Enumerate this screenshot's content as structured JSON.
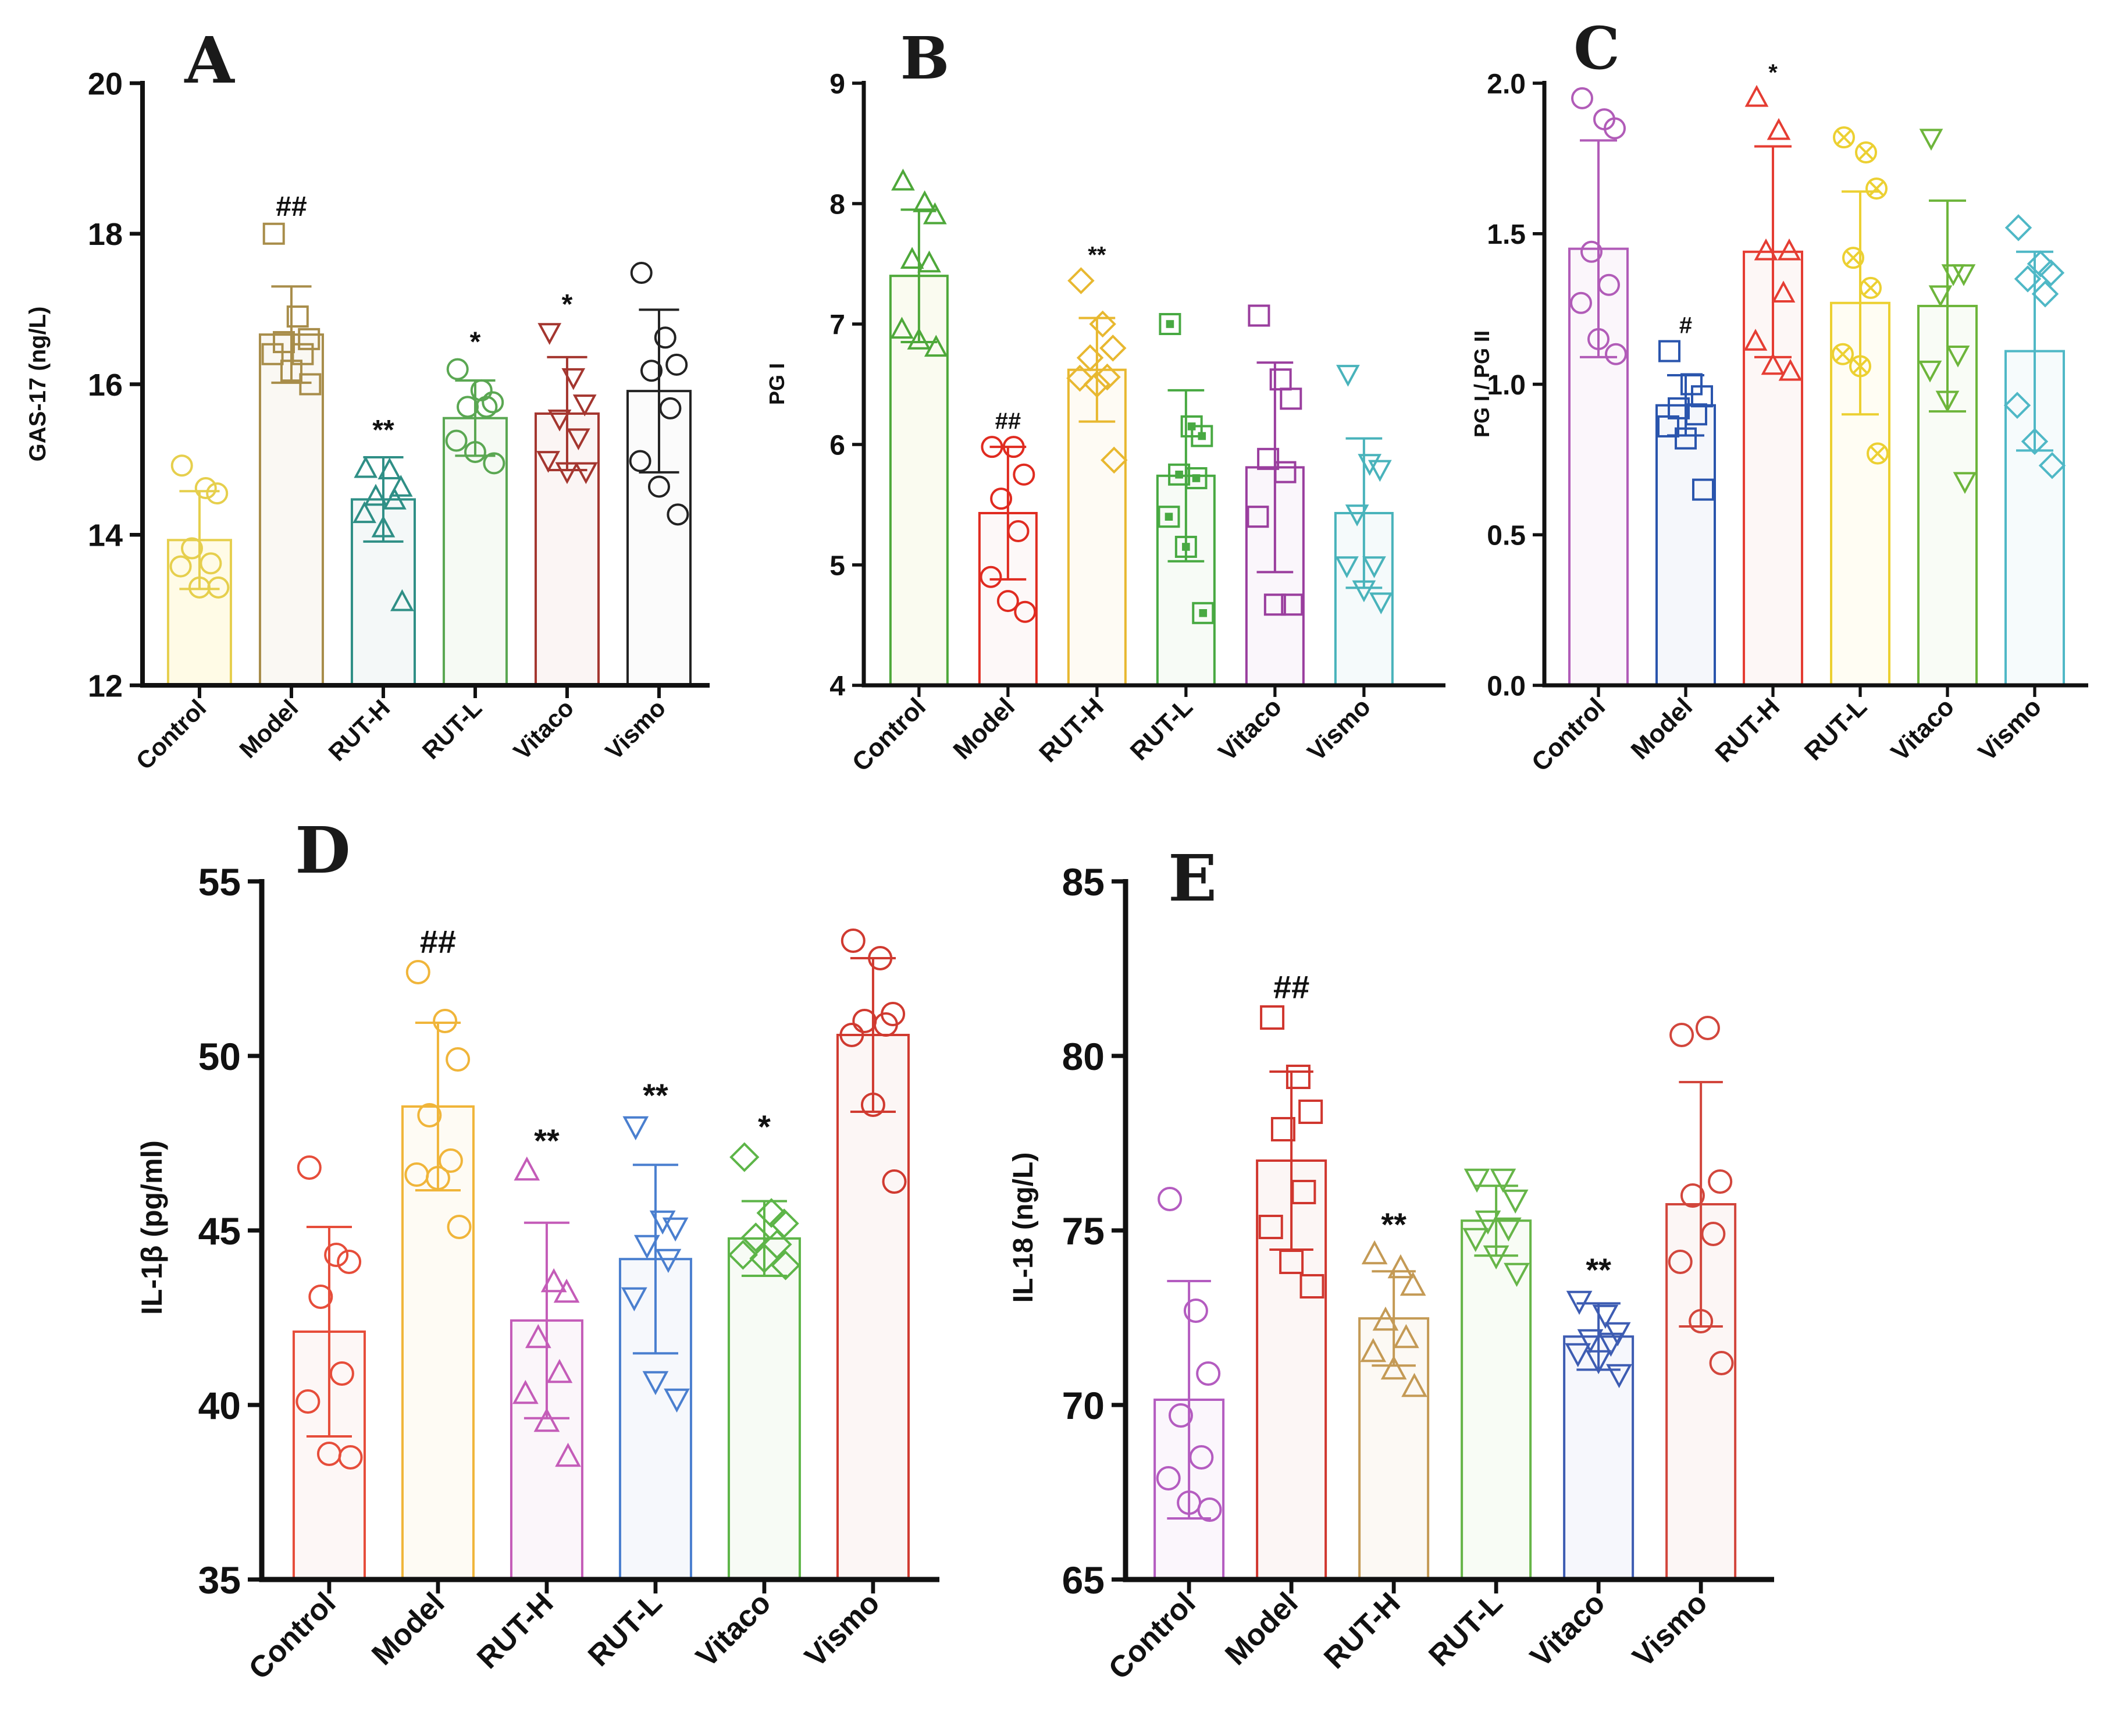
{
  "chart_data": [
    {
      "panel": "A",
      "type": "bar",
      "ylabel": "GAS-17  (ng/L)",
      "ylim": [
        12,
        20
      ],
      "yticks": [
        12,
        14,
        16,
        18,
        20
      ],
      "categories": [
        "Control",
        "Model",
        "RUT-H",
        "RUT-L",
        "Vitaco",
        "Vismo"
      ],
      "means": [
        13.93,
        16.66,
        14.47,
        15.55,
        15.61,
        15.91
      ],
      "sd": [
        0.65,
        0.64,
        0.56,
        0.5,
        0.75,
        1.08
      ],
      "points": [
        [
          14.92,
          14.62,
          14.55,
          13.82,
          13.62,
          13.58,
          13.3,
          13.3
        ],
        [
          18.0,
          16.9,
          16.6,
          16.56,
          16.4,
          16.4,
          16.18,
          16.0
        ],
        [
          14.87,
          14.85,
          14.62,
          14.5,
          14.45,
          14.27,
          14.08,
          13.1
        ],
        [
          16.2,
          15.92,
          15.76,
          15.7,
          15.7,
          15.25,
          15.1,
          14.95
        ],
        [
          16.7,
          16.1,
          15.75,
          15.55,
          15.3,
          15.0,
          14.85,
          14.85
        ],
        [
          17.48,
          16.62,
          16.26,
          16.18,
          15.68,
          14.98,
          14.64,
          14.27
        ]
      ],
      "annotations": [
        "",
        "##",
        "**",
        "*",
        "*",
        ""
      ],
      "colors": [
        "#e6cf4d",
        "#a88d4a",
        "#2f8f86",
        "#5aa752",
        "#a4362f",
        "#222222"
      ],
      "fills": [
        "#fffbe6",
        "#faf8f3",
        "#f4f8f8",
        "#f6faf4",
        "#fbf5f4",
        "#fbfbfb"
      ],
      "marker": [
        "circle",
        "square",
        "triangle",
        "circle",
        "triangle-down",
        "circle"
      ]
    },
    {
      "panel": "B",
      "type": "bar",
      "ylabel": "PG I",
      "ylim": [
        4,
        9
      ],
      "yticks": [
        4,
        5,
        6,
        7,
        8,
        9
      ],
      "categories": [
        "Control",
        "Model",
        "RUT-H",
        "RUT-L",
        "Vitaco",
        "Vismo"
      ],
      "means": [
        7.4,
        5.43,
        6.62,
        5.74,
        5.81,
        5.43
      ],
      "sd": [
        0.55,
        0.55,
        0.43,
        0.71,
        0.87,
        0.62
      ],
      "points": [
        [
          8.18,
          8.0,
          7.9,
          7.53,
          7.5,
          6.95,
          6.86,
          6.8
        ],
        [
          5.98,
          5.98,
          5.75,
          5.55,
          5.28,
          4.9,
          4.7,
          4.61
        ],
        [
          7.36,
          7.0,
          6.8,
          6.72,
          6.56,
          6.55,
          6.5,
          5.87
        ],
        [
          7.0,
          6.15,
          6.07,
          5.75,
          5.72,
          5.4,
          5.15,
          4.6
        ],
        [
          7.07,
          6.54,
          6.38,
          5.88,
          5.77,
          5.4,
          4.67,
          4.67
        ],
        [
          6.59,
          5.85,
          5.8,
          5.43,
          5.0,
          5.0,
          4.8,
          4.7
        ]
      ],
      "annotations": [
        "",
        "##",
        "**",
        "",
        "",
        ""
      ],
      "colors": [
        "#4ea83a",
        "#e02b20",
        "#e8b830",
        "#48a942",
        "#9a3e9e",
        "#49b3bb"
      ],
      "fills": [
        "#fafbf0",
        "#fdf8f8",
        "#fefbf4",
        "#f7fbf6",
        "#faf6fb",
        "#f5fafb"
      ],
      "marker": [
        "triangle",
        "circle",
        "diamond",
        "square-dot",
        "square",
        "triangle-down"
      ]
    },
    {
      "panel": "C",
      "type": "bar",
      "ylabel": "PG I / PG II",
      "ylim": [
        0,
        2
      ],
      "yticks": [
        "0.0",
        "0.5",
        "1.0",
        "1.5",
        "2.0"
      ],
      "categories": [
        "Control",
        "Model",
        "RUT-H",
        "RUT-L",
        "Vitaco",
        "Vismo"
      ],
      "means": [
        1.45,
        0.93,
        1.44,
        1.27,
        1.26,
        1.11
      ],
      "sd": [
        0.36,
        0.1,
        0.35,
        0.37,
        0.35,
        0.33
      ],
      "points": [
        [
          1.95,
          1.88,
          1.85,
          1.44,
          1.33,
          1.27,
          1.15,
          1.1
        ],
        [
          1.11,
          1.0,
          0.96,
          0.92,
          0.9,
          0.86,
          0.82,
          0.65
        ],
        [
          1.95,
          1.84,
          1.44,
          1.44,
          1.3,
          1.14,
          1.06,
          1.04
        ],
        [
          1.82,
          1.77,
          1.65,
          1.42,
          1.32,
          1.1,
          1.06,
          0.77
        ],
        [
          1.82,
          1.37,
          1.37,
          1.3,
          1.1,
          1.05,
          0.95,
          0.68
        ],
        [
          1.52,
          1.4,
          1.37,
          1.35,
          1.3,
          0.93,
          0.81,
          0.73
        ]
      ],
      "annotations": [
        "",
        "#",
        "*",
        "",
        "",
        ""
      ],
      "colors": [
        "#b15cb8",
        "#2a55ad",
        "#e53d33",
        "#ecd032",
        "#6db53b",
        "#4fb8c6"
      ],
      "fills": [
        "#fbf6fb",
        "#f5f7fb",
        "#fdf7f6",
        "#fffdf3",
        "#f9fcf6",
        "#f6fbfc"
      ],
      "marker": [
        "circle",
        "square",
        "triangle",
        "circle-x",
        "triangle-down",
        "diamond"
      ]
    },
    {
      "panel": "D",
      "type": "bar",
      "ylabel": "IL-1β  (pg/ml)",
      "ylim": [
        35,
        55
      ],
      "yticks": [
        35,
        40,
        45,
        50,
        55
      ],
      "categories": [
        "Control",
        "Model",
        "RUT-H",
        "RUT-L",
        "Vitaco",
        "Vismo"
      ],
      "means": [
        42.1,
        48.55,
        42.42,
        44.18,
        44.77,
        50.6
      ],
      "sd": [
        3.0,
        2.4,
        2.8,
        2.7,
        1.07,
        2.2
      ],
      "points": [
        [
          46.8,
          44.3,
          44.1,
          43.1,
          40.9,
          40.1,
          38.6,
          38.5
        ],
        [
          52.4,
          51.0,
          49.9,
          48.3,
          47.0,
          46.6,
          46.5,
          45.1
        ],
        [
          46.7,
          43.5,
          43.2,
          41.9,
          40.9,
          40.3,
          39.5,
          38.5
        ],
        [
          48.0,
          45.3,
          45.1,
          44.6,
          44.2,
          43.1,
          40.7,
          40.2
        ],
        [
          47.1,
          45.5,
          45.2,
          44.8,
          44.6,
          44.3,
          44.2,
          44.0
        ],
        [
          53.3,
          52.8,
          51.2,
          51.0,
          50.9,
          50.6,
          48.6,
          46.4
        ]
      ],
      "annotations": [
        "",
        "##",
        "**",
        "**",
        "*",
        ""
      ],
      "colors": [
        "#e64d3a",
        "#f0b53a",
        "#c45cb8",
        "#4a7fcf",
        "#5db548",
        "#d03a30"
      ],
      "fills": [
        "#fdf7f6",
        "#fefbf4",
        "#fbf6fa",
        "#f6f8fc",
        "#f7fbf5",
        "#fcf6f5"
      ],
      "marker": [
        "circle",
        "circle",
        "triangle",
        "triangle-down",
        "diamond",
        "circle"
      ]
    },
    {
      "panel": "E",
      "type": "bar",
      "ylabel": "IL-18  (ng/L)",
      "ylim": [
        65,
        85
      ],
      "yticks": [
        65,
        70,
        75,
        80,
        85
      ],
      "categories": [
        "Control",
        "Model",
        "RUT-H",
        "RUT-L",
        "Vitaco",
        "Vismo"
      ],
      "means": [
        70.15,
        77.0,
        72.48,
        75.28,
        71.96,
        75.75
      ],
      "sd": [
        3.4,
        2.55,
        1.35,
        1.0,
        0.95,
        3.5
      ],
      "points": [
        [
          75.9,
          72.7,
          70.9,
          69.7,
          68.5,
          67.9,
          67.2,
          67.0
        ],
        [
          81.1,
          79.4,
          78.4,
          77.9,
          76.1,
          75.1,
          74.1,
          73.4
        ],
        [
          74.3,
          73.9,
          73.4,
          72.4,
          71.9,
          71.5,
          71.0,
          70.5
        ],
        [
          76.5,
          76.5,
          75.9,
          75.3,
          75.1,
          74.8,
          74.3,
          73.8
        ],
        [
          73.0,
          72.6,
          72.1,
          71.9,
          71.8,
          71.5,
          71.3,
          70.9
        ],
        [
          80.6,
          80.8,
          76.4,
          76.0,
          74.9,
          74.1,
          72.4,
          71.2
        ]
      ],
      "annotations": [
        "",
        "##",
        "**",
        "",
        "**",
        ""
      ],
      "colors": [
        "#b45cc0",
        "#d0362e",
        "#c49a55",
        "#66b548",
        "#3d5cb2",
        "#d2463c"
      ],
      "fills": [
        "#fbf6fc",
        "#fcf6f5",
        "#fcf9f4",
        "#f8fcf5",
        "#f6f7fc",
        "#fcf6f5"
      ],
      "marker": [
        "circle",
        "square",
        "triangle",
        "triangle-down",
        "triangle-down",
        "circle"
      ]
    }
  ]
}
